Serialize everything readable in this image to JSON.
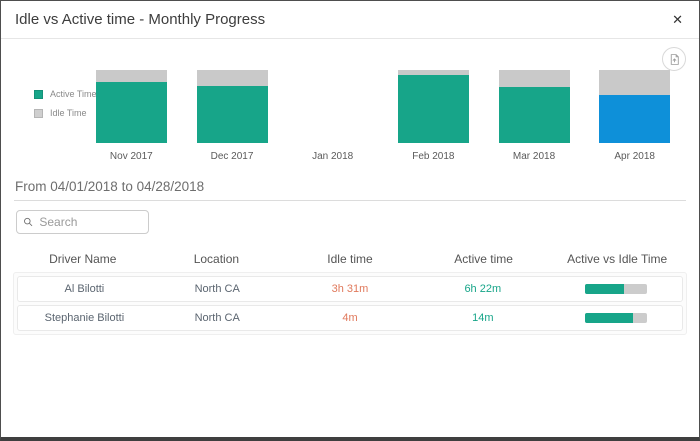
{
  "dialog": {
    "title": "Idle vs Active time - Monthly Progress",
    "close_glyph": "✕"
  },
  "chart_data": {
    "type": "bar",
    "subtype": "stacked-100-percent",
    "categories": [
      "Nov 2017",
      "Dec 2017",
      "Jan 2018",
      "Feb 2018",
      "Mar 2018",
      "Apr 2018"
    ],
    "series": [
      {
        "name": "Active Time",
        "values": [
          83,
          78,
          0,
          93,
          77,
          66
        ]
      },
      {
        "name": "Idle Time",
        "values": [
          17,
          22,
          0,
          7,
          23,
          34
        ]
      }
    ],
    "unit": "percent-of-bar-height",
    "highlight_category": "Apr 2018",
    "legend_position": "left",
    "colors": {
      "active": "#17A589",
      "idle": "#C9C9C9",
      "highlight_active": "#0E90D9"
    }
  },
  "legend": {
    "items": [
      {
        "label": "Active Time",
        "color": "#17A589"
      },
      {
        "label": "Idle Time",
        "color": "#CFCFCF"
      }
    ]
  },
  "period": {
    "label": "From 04/01/2018 to 04/28/2018"
  },
  "search": {
    "placeholder": "Search"
  },
  "table": {
    "columns": [
      "Driver Name",
      "Location",
      "Idle time",
      "Active time",
      "Active vs Idle Time"
    ],
    "rows": [
      {
        "driver_name": "Al Bilotti",
        "location": "North CA",
        "idle_time": "3h 31m",
        "active_time": "6h 22m",
        "active_pct": 64
      },
      {
        "driver_name": "Stephanie Bilotti",
        "location": "North CA",
        "idle_time": "4m",
        "active_time": "14m",
        "active_pct": 78
      }
    ],
    "value_colors": {
      "idle_text": "#E0795C",
      "active_text": "#17A589",
      "bar_fill": "#17A589",
      "bar_track": "#CCCCCC"
    }
  }
}
